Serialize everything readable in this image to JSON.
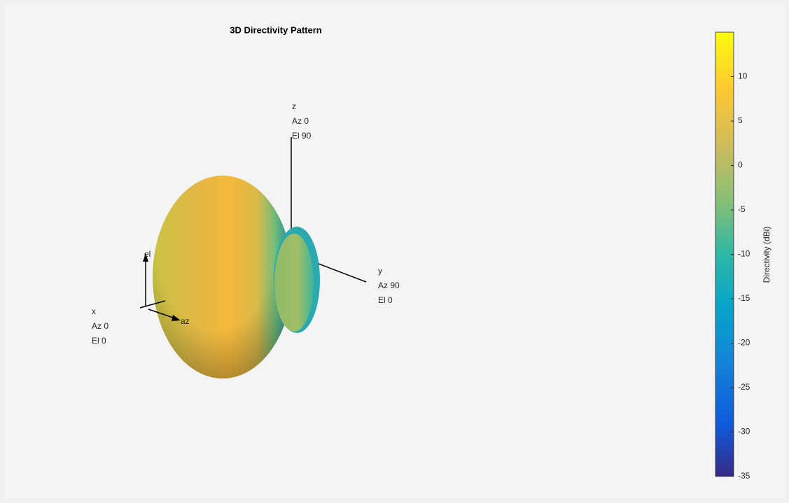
{
  "chart_data": {
    "type": "pattern3d",
    "title": "3D Directivity Pattern",
    "colorbar": {
      "label": "Directivity (dBi)",
      "clim": [
        -35,
        15
      ],
      "ticks": [
        -35,
        -30,
        -25,
        -20,
        -15,
        -10,
        -5,
        0,
        5,
        10
      ]
    },
    "axis_labels": [
      {
        "lines": [
          "z",
          "Az 0",
          "El 90"
        ]
      },
      {
        "lines": [
          "y",
          "Az 90",
          "El 0"
        ]
      },
      {
        "lines": [
          "x",
          "Az 0",
          "El 0"
        ]
      }
    ],
    "angle_labels": [
      "el",
      "az"
    ]
  }
}
